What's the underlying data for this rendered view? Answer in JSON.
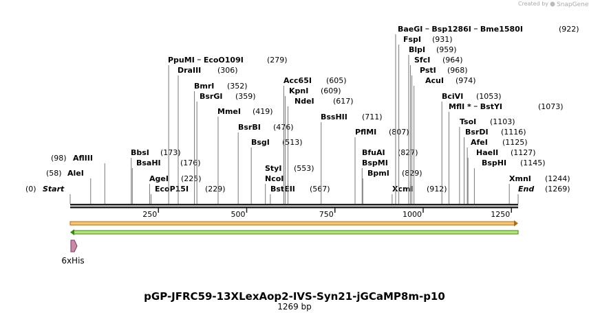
{
  "credit": {
    "prefix": "Created by",
    "brand": "SnapGene"
  },
  "title": "pGP-JFRC59-13XLexAop2-IVS-Syn21-jGCaMP8m-p10",
  "length": "1269 bp",
  "ruler": {
    "ticks": [
      250,
      500,
      750,
      1000,
      1250
    ]
  },
  "feature": {
    "label": "6xHis"
  },
  "sites": [
    {
      "rows": [
        [
          "Start"
        ]
      ],
      "site": {
        "value": 0,
        "label": "(0)"
      }
    },
    {
      "rows": [
        [
          "AleI"
        ]
      ],
      "site": {
        "value": 58,
        "label": "(58)"
      }
    },
    {
      "rows": [
        [
          "AflIII"
        ]
      ],
      "site": {
        "value": 98,
        "label": "(98)"
      }
    },
    {
      "rows": [
        [
          "BbsI"
        ]
      ],
      "site": {
        "value": 173,
        "label": "(173)"
      }
    },
    {
      "rows": [
        [
          "BsaHI"
        ]
      ],
      "site": {
        "value": 176,
        "label": "(176)"
      }
    },
    {
      "rows": [
        [
          "AgeI"
        ]
      ],
      "site": {
        "value": 225,
        "label": "(225)"
      }
    },
    {
      "rows": [
        [
          "EcoP15I"
        ]
      ],
      "site": {
        "value": 229,
        "label": "(229)"
      }
    },
    {
      "rows": [
        [
          "PpuMI",
          "EcoO109I"
        ]
      ],
      "site": {
        "value": 279,
        "label": "(279)"
      }
    },
    {
      "rows": [
        [
          "DraIII"
        ]
      ],
      "site": {
        "value": 306,
        "label": "(306)"
      }
    },
    {
      "rows": [
        [
          "BmrI"
        ]
      ],
      "site": {
        "value": 352,
        "label": "(352)"
      }
    },
    {
      "rows": [
        [
          "BsrGI"
        ]
      ],
      "site": {
        "value": 359,
        "label": "(359)"
      }
    },
    {
      "rows": [
        [
          "MmeI"
        ]
      ],
      "site": {
        "value": 419,
        "label": "(419)"
      }
    },
    {
      "rows": [
        [
          "BsrBI"
        ]
      ],
      "site": {
        "value": 476,
        "label": "(476)"
      }
    },
    {
      "rows": [
        [
          "BsgI"
        ]
      ],
      "site": {
        "value": 513,
        "label": "(513)"
      }
    },
    {
      "rows": [
        [
          "StyI"
        ],
        [
          "NcoI"
        ]
      ],
      "site": {
        "value": 553,
        "label": "(553)"
      }
    },
    {
      "rows": [
        [
          "BstEII"
        ]
      ],
      "site": {
        "value": 567,
        "label": "(567)"
      }
    },
    {
      "rows": [
        [
          "Acc65I"
        ]
      ],
      "site": {
        "value": 605,
        "label": "(605)"
      }
    },
    {
      "rows": [
        [
          "KpnI"
        ]
      ],
      "site": {
        "value": 609,
        "label": "(609)"
      }
    },
    {
      "rows": [
        [
          "NdeI"
        ]
      ],
      "site": {
        "value": 617,
        "label": "(617)"
      }
    },
    {
      "rows": [
        [
          "BssHII"
        ]
      ],
      "site": {
        "value": 711,
        "label": "(711)"
      }
    },
    {
      "rows": [
        [
          "PflMI"
        ]
      ],
      "site": {
        "value": 807,
        "label": "(807)"
      }
    },
    {
      "rows": [
        [
          "BfuAI"
        ],
        [
          "BspMI"
        ]
      ],
      "site": {
        "value": 827,
        "label": "(827)"
      }
    },
    {
      "rows": [
        [
          "BpmI"
        ]
      ],
      "site": {
        "value": 829,
        "label": "(829)"
      }
    },
    {
      "rows": [
        [
          "XcmI"
        ]
      ],
      "site": {
        "value": 912,
        "label": "(912)"
      }
    },
    {
      "rows": [
        [
          "BaeGI",
          "Bsp1286I",
          "Bme1580I"
        ]
      ],
      "site": {
        "value": 922,
        "label": "(922)"
      }
    },
    {
      "rows": [
        [
          "FspI"
        ]
      ],
      "site": {
        "value": 931,
        "label": "(931)"
      }
    },
    {
      "rows": [
        [
          "BlpI"
        ]
      ],
      "site": {
        "value": 959,
        "label": "(959)"
      }
    },
    {
      "rows": [
        [
          "SfcI"
        ]
      ],
      "site": {
        "value": 964,
        "label": "(964)"
      }
    },
    {
      "rows": [
        [
          "PstI"
        ]
      ],
      "site": {
        "value": 968,
        "label": "(968)"
      }
    },
    {
      "rows": [
        [
          "AcuI"
        ]
      ],
      "site": {
        "value": 974,
        "label": "(974)"
      }
    },
    {
      "rows": [
        [
          "BciVI"
        ]
      ],
      "site": {
        "value": 1053,
        "label": "(1053)"
      }
    },
    {
      "rows": [
        [
          "MflI *",
          "BstYI"
        ]
      ],
      "site": {
        "value": 1073,
        "label": "(1073)"
      }
    },
    {
      "rows": [
        [
          "TsoI"
        ]
      ],
      "site": {
        "value": 1103,
        "label": "(1103)"
      }
    },
    {
      "rows": [
        [
          "BsrDI"
        ]
      ],
      "site": {
        "value": 1116,
        "label": "(1116)"
      }
    },
    {
      "rows": [
        [
          "AfeI"
        ]
      ],
      "site": {
        "value": 1125,
        "label": "(1125)"
      }
    },
    {
      "rows": [
        [
          "HaeII"
        ]
      ],
      "site": {
        "value": 1127,
        "label": "(1127)"
      }
    },
    {
      "rows": [
        [
          "BspHI"
        ]
      ],
      "site": {
        "value": 1145,
        "label": "(1145)"
      }
    },
    {
      "rows": [
        [
          "XmnI"
        ]
      ],
      "site": {
        "value": 1244,
        "label": "(1244)"
      }
    },
    {
      "rows": [
        [
          "End"
        ]
      ],
      "site": {
        "value": 1269,
        "label": "(1269)"
      }
    }
  ]
}
